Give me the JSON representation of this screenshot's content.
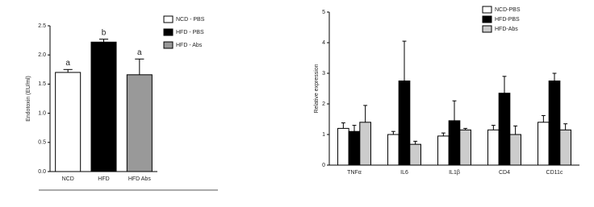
{
  "chart_data": [
    {
      "type": "bar",
      "y_label": "Endotoxin (EU/ml)",
      "categories": [
        "NCD",
        "HFD",
        "HFD Abs"
      ],
      "series": [
        {
          "name": "NCD - PBS",
          "color": "#ffffff",
          "values": [
            1.7,
            null,
            null
          ],
          "errors": [
            0.05,
            null,
            null
          ]
        },
        {
          "name": "HFD - PBS",
          "color": "#000000",
          "values": [
            null,
            2.22,
            null
          ],
          "errors": [
            null,
            0.05,
            null
          ]
        },
        {
          "name": "HFD - Abs",
          "color": "#999999",
          "values": [
            null,
            null,
            1.66
          ],
          "errors": [
            null,
            null,
            0.27
          ]
        }
      ],
      "annotations": [
        "a",
        "b",
        "a"
      ],
      "ylim": [
        0,
        2.5
      ],
      "yticks": [
        {
          "value": 0,
          "label": "0.0"
        },
        0.5,
        {
          "value": 1,
          "label": "1.0"
        },
        1.5,
        {
          "value": 2,
          "label": "2.0"
        },
        2.5
      ],
      "stacked_slots": true
    },
    {
      "type": "bar",
      "y_label": "Relative expression",
      "categories": [
        "TNFα",
        "IL6",
        "IL1β",
        "CD4",
        "CD11c"
      ],
      "series": [
        {
          "name": "NCD-PBS",
          "color": "#ffffff",
          "values": [
            1.2,
            1.0,
            0.95,
            1.15,
            1.4
          ],
          "errors": [
            0.18,
            0.1,
            0.1,
            0.15,
            0.22
          ]
        },
        {
          "name": "HFD-PBS",
          "color": "#000000",
          "values": [
            1.1,
            2.75,
            1.45,
            2.35,
            2.75
          ],
          "errors": [
            0.2,
            1.3,
            0.65,
            0.55,
            0.25
          ]
        },
        {
          "name": "HFD-Abs",
          "color": "#cccccc",
          "values": [
            1.4,
            0.68,
            1.15,
            1.0,
            1.15
          ],
          "errors": [
            0.55,
            0.1,
            0.05,
            0.28,
            0.2
          ]
        }
      ],
      "ylim": [
        0,
        5
      ],
      "yticks": [
        0,
        1,
        2,
        3,
        4,
        5
      ]
    }
  ]
}
